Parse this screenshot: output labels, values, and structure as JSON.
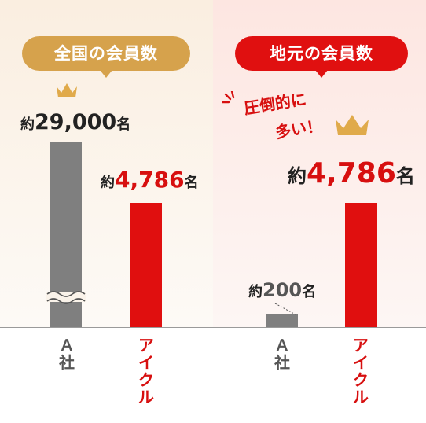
{
  "chart_data": [
    {
      "type": "bar",
      "title": "全国の会員数",
      "categories": [
        "Ａ社",
        "アイクル"
      ],
      "values": [
        29000,
        4786
      ],
      "value_labels": [
        {
          "prefix": "約",
          "number": "29,000",
          "suffix": "名"
        },
        {
          "prefix": "約",
          "number": "4,786",
          "suffix": "名"
        }
      ],
      "axis_break": true,
      "colors": [
        "#7f7f7f",
        "#e00f0f"
      ]
    },
    {
      "type": "bar",
      "title": "地元の会員数",
      "categories": [
        "Ａ社",
        "アイクル"
      ],
      "values": [
        200,
        4786
      ],
      "value_labels": [
        {
          "prefix": "約",
          "number": "200",
          "suffix": "名"
        },
        {
          "prefix": "約",
          "number": "4,786",
          "suffix": "名"
        }
      ],
      "annotation": [
        "圧倒的に",
        "多い！"
      ],
      "colors": [
        "#7f7f7f",
        "#e00f0f"
      ]
    }
  ],
  "colors": {
    "gold": "#d6a24c",
    "red": "#e01010",
    "gray": "#7f7f7f"
  },
  "icons": {
    "winner": "crown-icon",
    "emphasis": "burst-lines-icon",
    "break": "axis-break-icon"
  }
}
